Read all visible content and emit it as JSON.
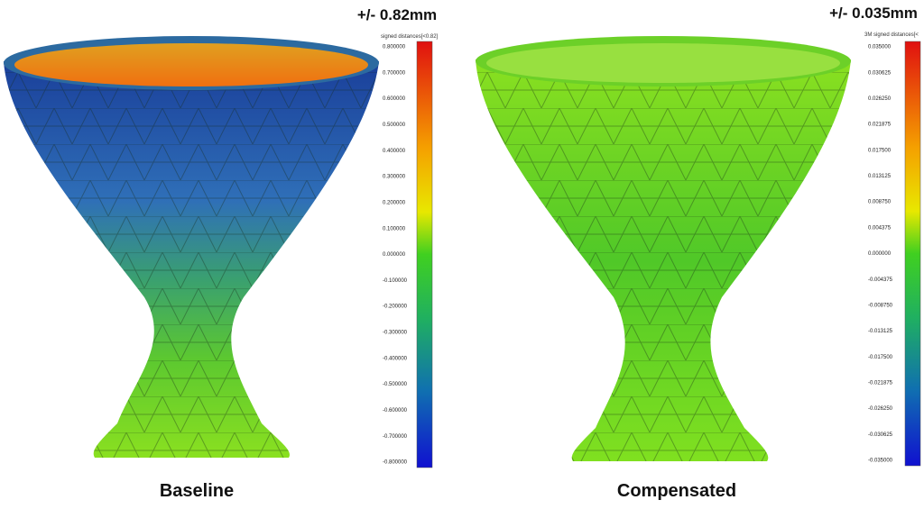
{
  "panels": [
    {
      "range_label": "+/- 0.82mm",
      "colorbar_title": "signed distances[<0.82]",
      "ticks": [
        "0.800000",
        "0.700000",
        "0.600000",
        "0.500000",
        "0.400000",
        "0.300000",
        "0.200000",
        "0.100000",
        "0.000000",
        "-0.100000",
        "-0.200000",
        "-0.300000",
        "-0.400000",
        "-0.500000",
        "-0.600000",
        "-0.700000",
        "-0.800000"
      ],
      "caption": "Baseline"
    },
    {
      "range_label": "+/- 0.035mm",
      "colorbar_title": "3M signed distances[<",
      "ticks": [
        "0.035000",
        "0.030625",
        "0.026250",
        "0.021875",
        "0.017500",
        "0.013125",
        "0.008750",
        "0.004375",
        "0.000000",
        "-0.004375",
        "-0.008750",
        "-0.013125",
        "-0.017500",
        "-0.021875",
        "-0.026250",
        "-0.030625",
        "-0.035000"
      ],
      "caption": "Compensated"
    }
  ]
}
